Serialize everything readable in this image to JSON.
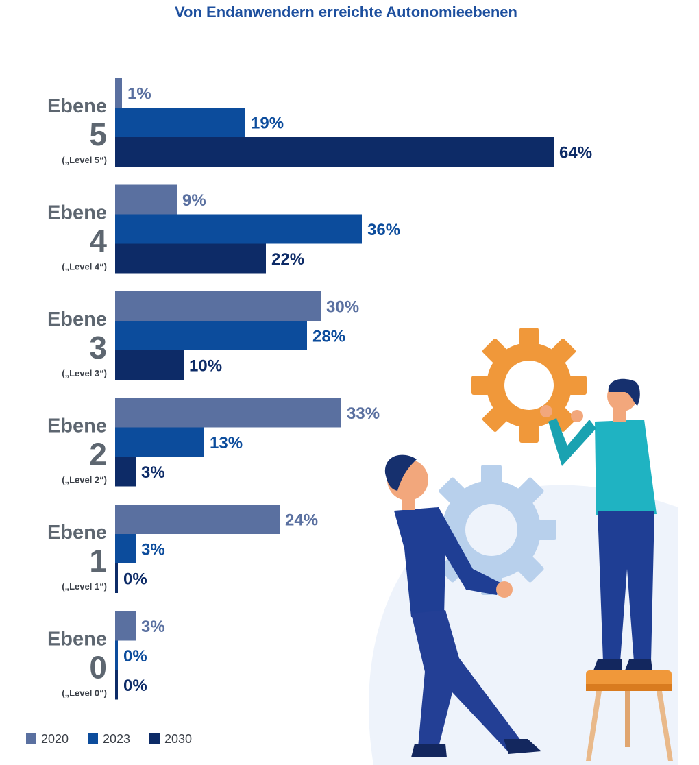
{
  "chart_data": {
    "type": "bar",
    "orientation": "horizontal",
    "title": "Von Endanwendern erreichte Autonomieebenen",
    "categories": [
      {
        "word": "Ebene",
        "number": "5",
        "sub": "(„Level 5“)"
      },
      {
        "word": "Ebene",
        "number": "4",
        "sub": "(„Level 4“)"
      },
      {
        "word": "Ebene",
        "number": "3",
        "sub": "(„Level 3“)"
      },
      {
        "word": "Ebene",
        "number": "2",
        "sub": "(„Level 2“)"
      },
      {
        "word": "Ebene",
        "number": "1",
        "sub": "(„Level 1“)"
      },
      {
        "word": "Ebene",
        "number": "0",
        "sub": "(„Level 0“)"
      }
    ],
    "series": [
      {
        "name": "2020",
        "color": "#5a70a0",
        "values": [
          1,
          9,
          30,
          33,
          24,
          3
        ]
      },
      {
        "name": "2023",
        "color": "#0c4c9c",
        "values": [
          19,
          36,
          28,
          13,
          3,
          0
        ]
      },
      {
        "name": "2030",
        "color": "#0d2b67",
        "values": [
          64,
          22,
          10,
          3,
          0,
          0
        ]
      }
    ],
    "value_suffix": "%",
    "legend_position": "bottom-left",
    "grid": false
  },
  "illustration": {
    "description_icons": [
      "orange-gear-icon",
      "light-blue-gear-icon",
      "person-carrying-gear",
      "person-on-stool"
    ],
    "colors": {
      "orange": "#f0983a",
      "light_blue": "#b8d0ec",
      "navy": "#1b3a8c",
      "teal": "#1fb3c2",
      "skin": "#f2a77c"
    }
  }
}
